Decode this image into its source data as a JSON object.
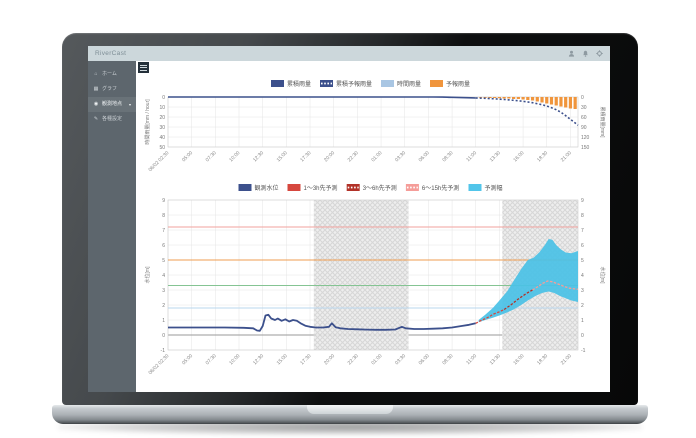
{
  "app": {
    "title": "RiverCast",
    "header_icons": [
      "user-icon",
      "bell-icon",
      "gear-icon"
    ]
  },
  "sidebar": {
    "items": [
      {
        "label": "ホーム",
        "icon": "home-icon",
        "active": false,
        "has_chevron": false
      },
      {
        "label": "グラフ",
        "icon": "graph-icon",
        "active": false,
        "has_chevron": false
      },
      {
        "label": "観測地点",
        "icon": "pin-icon",
        "active": true,
        "has_chevron": true
      },
      {
        "label": "各種設定",
        "icon": "tools-icon",
        "active": false,
        "has_chevron": false
      }
    ]
  },
  "chart_data": [
    {
      "id": "rainfall",
      "type": "bar",
      "title": "",
      "x_labels": [
        "06/02 02:30",
        "05:00",
        "07:30",
        "10:00",
        "12:30",
        "15:00",
        "17:30",
        "20:00",
        "22:30",
        "01:00",
        "03:30",
        "06:00",
        "08:30",
        "11:00",
        "13:30",
        "16:00",
        "18:30",
        "21:00"
      ],
      "x_tick_step_hours": 2.5,
      "x_max_hours": 43.3,
      "grid": true,
      "y_left": {
        "label": "時間雨量[mm / hour]",
        "range": [
          0,
          50
        ],
        "inverted": true,
        "ticks": [
          0,
          10,
          20,
          30,
          40,
          50
        ]
      },
      "y_right": {
        "label": "累積雨量[mm]",
        "range": [
          0,
          150
        ],
        "inverted": true,
        "ticks": [
          0,
          30,
          60,
          90,
          120,
          150
        ]
      },
      "legend": [
        {
          "label": "累積雨量",
          "color": "#3c508c",
          "style": "solid"
        },
        {
          "label": "累積予報雨量",
          "color": "#3c508c",
          "style": "dashed"
        },
        {
          "label": "時間雨量",
          "color": "#a9c6e3",
          "style": "solid"
        },
        {
          "label": "予報雨量",
          "color": "#f0953c",
          "style": "solid"
        }
      ],
      "series": [
        {
          "name": "累積雨量",
          "kind": "line",
          "axis": "right",
          "color": "#3c508c",
          "dash": null,
          "points": [
            [
              0,
              0
            ],
            [
              5,
              0
            ],
            [
              10,
              0
            ],
            [
              15,
              0
            ],
            [
              20,
              0
            ],
            [
              25,
              0
            ],
            [
              28,
              0
            ],
            [
              29,
              0.3
            ],
            [
              30,
              1
            ],
            [
              31,
              1.8
            ],
            [
              32,
              2.5
            ],
            [
              32.5,
              3
            ]
          ]
        },
        {
          "name": "累積予報雨量",
          "kind": "line",
          "axis": "right",
          "color": "#3c508c",
          "dash": "2,2",
          "points": [
            [
              32.5,
              3
            ],
            [
              33.5,
              4
            ],
            [
              34.5,
              5.5
            ],
            [
              35.5,
              7.5
            ],
            [
              36.5,
              10
            ],
            [
              37.5,
              13
            ],
            [
              38.5,
              17
            ],
            [
              39.5,
              23
            ],
            [
              40,
              27
            ],
            [
              40.5,
              32
            ],
            [
              41,
              38
            ],
            [
              41.5,
              46
            ],
            [
              42,
              56
            ],
            [
              42.5,
              67
            ],
            [
              43,
              78
            ],
            [
              43.3,
              85
            ]
          ]
        },
        {
          "name": "時間雨量",
          "kind": "bar",
          "axis": "left",
          "color": "#a9c6e3",
          "points": [
            [
              29.2,
              0.8
            ],
            [
              29.7,
              1.2
            ],
            [
              30.2,
              1
            ],
            [
              30.7,
              0.8
            ],
            [
              31.2,
              0.6
            ],
            [
              31.7,
              0.5
            ],
            [
              32.2,
              0.5
            ]
          ]
        },
        {
          "name": "予報雨量",
          "kind": "bar",
          "axis": "left",
          "color": "#f0953c",
          "points": [
            [
              33,
              0.6
            ],
            [
              33.5,
              0.8
            ],
            [
              34,
              1
            ],
            [
              34.5,
              1
            ],
            [
              35,
              1.2
            ],
            [
              35.5,
              1.5
            ],
            [
              36,
              1.5
            ],
            [
              36.5,
              2
            ],
            [
              37,
              2
            ],
            [
              37.5,
              2.5
            ],
            [
              38,
              3
            ],
            [
              38.5,
              3.5
            ],
            [
              39,
              4.5
            ],
            [
              39.5,
              5.5
            ],
            [
              40,
              6.5
            ],
            [
              40.5,
              7.5
            ],
            [
              41,
              8.5
            ],
            [
              41.5,
              9.5
            ],
            [
              42,
              10.5
            ],
            [
              42.5,
              11.5
            ],
            [
              43,
              12
            ]
          ]
        }
      ]
    },
    {
      "id": "water-level",
      "type": "line",
      "title": "",
      "x_labels": [
        "06/02 02:30",
        "05:00",
        "07:30",
        "10:00",
        "12:30",
        "15:00",
        "17:30",
        "20:00",
        "22:30",
        "01:00",
        "03:30",
        "06:00",
        "08:30",
        "11:00",
        "13:30",
        "16:00",
        "18:30",
        "21:00"
      ],
      "x_tick_step_hours": 2.5,
      "x_max_hours": 43.3,
      "grid": true,
      "y_left": {
        "label": "水位[m]",
        "range": [
          -1,
          9
        ],
        "ticks": [
          -1,
          0,
          1,
          2,
          3,
          4,
          5,
          6,
          7,
          8,
          9
        ]
      },
      "y_right": {
        "label": "水位[m]",
        "range": [
          -1,
          9
        ],
        "ticks": [
          -1,
          0,
          1,
          2,
          3,
          4,
          5,
          6,
          7,
          8,
          9
        ]
      },
      "legend": [
        {
          "label": "観測水位",
          "color": "#3c508c",
          "style": "solid"
        },
        {
          "label": "1〜3h先予測",
          "color": "#d6473e",
          "style": "solid"
        },
        {
          "label": "3〜6h先予測",
          "color": "#b23228",
          "style": "dashed"
        },
        {
          "label": "6〜15h先予測",
          "color": "#f59d99",
          "style": "dashed"
        },
        {
          "label": "予測幅",
          "color": "#52c5ea",
          "style": "solid"
        }
      ],
      "night_bands": [
        [
          15.4,
          25.4
        ],
        [
          35.3,
          43.3
        ]
      ],
      "thresholds": [
        {
          "value": 7.2,
          "color": "#f2a29d"
        },
        {
          "value": 5.0,
          "color": "#ef9d50"
        },
        {
          "value": 3.3,
          "color": "#85c493"
        },
        {
          "value": 1.8,
          "color": "#b9d7ee"
        }
      ],
      "band": {
        "name": "予測幅",
        "color": "#4ac1e6",
        "upper": [
          [
            32.8,
            1.0
          ],
          [
            33.5,
            1.35
          ],
          [
            34.3,
            1.8
          ],
          [
            35,
            2.3
          ],
          [
            35.8,
            2.9
          ],
          [
            36.5,
            3.6
          ],
          [
            37.3,
            4.4
          ],
          [
            38,
            5.0
          ],
          [
            38.6,
            5.15
          ],
          [
            39.2,
            5.5
          ],
          [
            39.8,
            6.0
          ],
          [
            40.2,
            6.4
          ],
          [
            40.6,
            6.35
          ],
          [
            41,
            6.0
          ],
          [
            41.5,
            5.7
          ],
          [
            42,
            5.5
          ],
          [
            42.6,
            5.45
          ],
          [
            43.3,
            5.6
          ]
        ],
        "lower": [
          [
            32.8,
            0.85
          ],
          [
            33.5,
            1.0
          ],
          [
            34.3,
            1.15
          ],
          [
            35,
            1.3
          ],
          [
            35.8,
            1.5
          ],
          [
            36.5,
            1.7
          ],
          [
            37.3,
            2.0
          ],
          [
            38,
            2.3
          ],
          [
            38.8,
            2.6
          ],
          [
            39.5,
            2.8
          ],
          [
            40.2,
            2.9
          ],
          [
            40.8,
            2.8
          ],
          [
            41.4,
            2.6
          ],
          [
            42,
            2.45
          ],
          [
            42.6,
            2.3
          ],
          [
            43.3,
            2.2
          ]
        ]
      },
      "series": [
        {
          "name": "観測水位",
          "kind": "line",
          "color": "#3c508c",
          "width": 1.8,
          "dash": null,
          "points": [
            [
              0,
              0.5
            ],
            [
              3,
              0.5
            ],
            [
              6,
              0.5
            ],
            [
              8,
              0.48
            ],
            [
              9,
              0.45
            ],
            [
              9.4,
              0.3
            ],
            [
              9.7,
              0.28
            ],
            [
              10,
              0.6
            ],
            [
              10.3,
              1.3
            ],
            [
              10.6,
              1.35
            ],
            [
              10.9,
              1.1
            ],
            [
              11.3,
              1.0
            ],
            [
              11.6,
              1.1
            ],
            [
              12,
              0.95
            ],
            [
              12.4,
              1.05
            ],
            [
              12.8,
              0.9
            ],
            [
              13.2,
              1.0
            ],
            [
              13.6,
              0.95
            ],
            [
              14,
              0.78
            ],
            [
              14.5,
              0.62
            ],
            [
              15,
              0.55
            ],
            [
              15.6,
              0.5
            ],
            [
              16.4,
              0.5
            ],
            [
              17,
              0.55
            ],
            [
              17.3,
              0.78
            ],
            [
              17.7,
              0.52
            ],
            [
              18.2,
              0.45
            ],
            [
              19,
              0.4
            ],
            [
              20,
              0.38
            ],
            [
              21,
              0.36
            ],
            [
              22,
              0.35
            ],
            [
              23,
              0.35
            ],
            [
              24,
              0.37
            ],
            [
              24.7,
              0.55
            ],
            [
              25.1,
              0.45
            ],
            [
              26,
              0.4
            ],
            [
              27,
              0.4
            ],
            [
              28,
              0.42
            ],
            [
              29,
              0.45
            ],
            [
              30,
              0.5
            ],
            [
              31,
              0.6
            ],
            [
              31.8,
              0.68
            ],
            [
              32.5,
              0.78
            ]
          ]
        },
        {
          "name": "1〜3h先予測",
          "kind": "line",
          "color": "#d6473e",
          "width": 1.3,
          "dash": "2.5,1.5",
          "points": [
            [
              32.5,
              0.78
            ],
            [
              33,
              0.95
            ],
            [
              33.7,
              1.15
            ],
            [
              34.4,
              1.4
            ],
            [
              35,
              1.55
            ],
            [
              35.5,
              1.7
            ]
          ]
        },
        {
          "name": "3〜6h先予測",
          "kind": "line",
          "color": "#b23228",
          "width": 1.3,
          "dash": "2.5,1.5",
          "points": [
            [
              35.5,
              1.7
            ],
            [
              36.2,
              2.0
            ],
            [
              37,
              2.4
            ],
            [
              37.8,
              2.75
            ],
            [
              38.5,
              3.0
            ]
          ]
        },
        {
          "name": "6〜15h先予測",
          "kind": "line",
          "color": "#f59d99",
          "width": 1.3,
          "dash": "2.5,1.5",
          "points": [
            [
              38.5,
              3.0
            ],
            [
              39,
              3.2
            ],
            [
              39.6,
              3.45
            ],
            [
              40.1,
              3.6
            ],
            [
              40.6,
              3.55
            ],
            [
              41.2,
              3.4
            ],
            [
              41.8,
              3.25
            ],
            [
              42.4,
              3.12
            ],
            [
              43.3,
              3.05
            ]
          ]
        }
      ]
    }
  ]
}
